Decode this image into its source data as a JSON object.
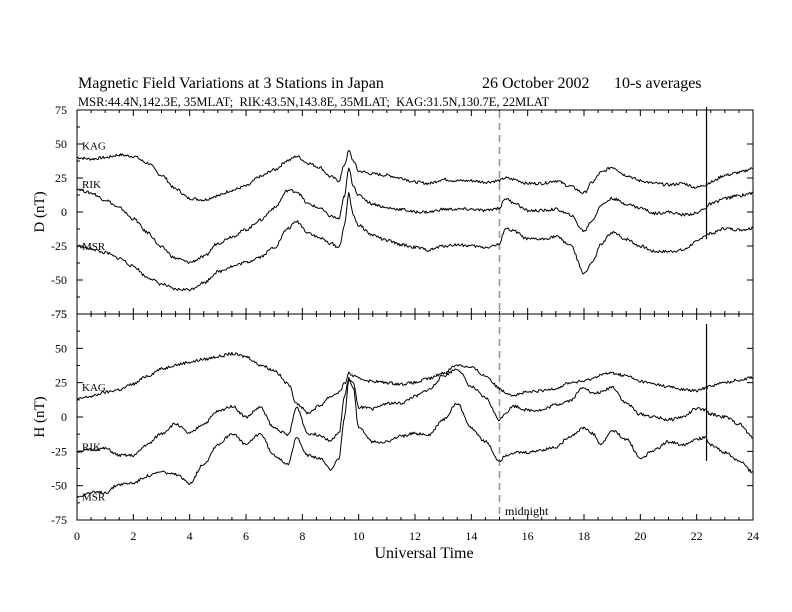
{
  "header": {
    "title": "Magnetic Field Variations at 3 Stations in Japan",
    "date": "26 October 2002",
    "averaging": "10-s averages",
    "stations_line": "MSR:44.4N,142.3E, 35MLAT;  RIK:43.5N,143.8E, 35MLAT;  KAG:31.5N,130.7E, 22MLAT"
  },
  "chart_data": [
    {
      "type": "line",
      "panel": "D",
      "ylabel": "D (nT)",
      "xlim": [
        0,
        24
      ],
      "ylim": [
        -75,
        75
      ],
      "yticks": [
        75,
        50,
        25,
        0,
        -25,
        -50,
        -75
      ],
      "series": [
        {
          "name": "KAG",
          "x": [
            0,
            0.5,
            1,
            1.5,
            2,
            2.5,
            3,
            3.5,
            4,
            4.5,
            5,
            5.5,
            6,
            6.5,
            7,
            7.5,
            7.8,
            8.2,
            8.6,
            9,
            9.3,
            9.5,
            9.65,
            9.8,
            10,
            10.5,
            11,
            11.5,
            12,
            12.5,
            13,
            13.5,
            14,
            14.5,
            15,
            15.2,
            15.5,
            16,
            16.5,
            17,
            17.5,
            18,
            18.3,
            18.6,
            19,
            19.5,
            20,
            20.5,
            21,
            21.5,
            22,
            22.3,
            22.5,
            23,
            23.5,
            24
          ],
          "y": [
            40,
            39,
            40,
            42,
            41,
            36,
            27,
            17,
            10,
            9,
            12,
            16,
            19,
            26,
            31,
            38,
            41,
            36,
            33,
            26,
            23,
            35,
            45,
            38,
            30,
            28,
            27,
            25,
            22,
            21,
            24,
            23,
            23,
            22,
            23,
            25,
            24,
            21,
            21,
            23,
            19,
            14,
            22,
            29,
            33,
            27,
            23,
            21,
            20,
            21,
            18,
            20,
            22,
            27,
            29,
            32
          ]
        },
        {
          "name": "RIK",
          "x": [
            0,
            0.5,
            1,
            1.5,
            2,
            2.5,
            3,
            3.5,
            4,
            4.5,
            5,
            5.5,
            6,
            6.5,
            7,
            7.5,
            7.8,
            8.2,
            8.6,
            9,
            9.3,
            9.5,
            9.65,
            9.8,
            10,
            10.5,
            11,
            11.5,
            12,
            12.5,
            13,
            13.5,
            14,
            14.5,
            15,
            15.2,
            15.5,
            16,
            16.5,
            17,
            17.5,
            18,
            18.3,
            18.6,
            19,
            19.5,
            20,
            20.5,
            21,
            21.5,
            22,
            22.3,
            22.5,
            23,
            23.5,
            24
          ],
          "y": [
            17,
            14,
            9,
            3,
            -5,
            -15,
            -26,
            -34,
            -37,
            -33,
            -23,
            -18,
            -13,
            -6,
            3,
            16,
            15,
            6,
            3,
            -3,
            -5,
            12,
            32,
            20,
            12,
            6,
            3,
            2,
            0,
            0,
            2,
            2,
            2,
            1,
            3,
            10,
            7,
            1,
            1,
            2,
            -2,
            -14,
            -6,
            5,
            10,
            6,
            3,
            -1,
            0,
            -2,
            -1,
            3,
            6,
            10,
            12,
            14
          ]
        },
        {
          "name": "MSR",
          "x": [
            0,
            0.5,
            1,
            1.5,
            2,
            2.5,
            3,
            3.5,
            4,
            4.5,
            5,
            5.5,
            6,
            6.5,
            7,
            7.5,
            7.8,
            8.2,
            8.6,
            9,
            9.3,
            9.5,
            9.65,
            9.8,
            10,
            10.5,
            11,
            11.5,
            12,
            12.5,
            13,
            13.5,
            14,
            14.5,
            15,
            15.2,
            15.5,
            16,
            16.5,
            17,
            17.5,
            18,
            18.3,
            18.6,
            19,
            19.5,
            20,
            20.5,
            21,
            21.5,
            22,
            22.3,
            22.5,
            23,
            23.5,
            24
          ],
          "y": [
            -25,
            -27,
            -30,
            -34,
            -40,
            -48,
            -53,
            -57,
            -57,
            -52,
            -44,
            -40,
            -37,
            -33,
            -26,
            -12,
            -7,
            -15,
            -19,
            -23,
            -26,
            -10,
            14,
            -2,
            -10,
            -17,
            -21,
            -24,
            -26,
            -28,
            -25,
            -24,
            -25,
            -26,
            -24,
            -12,
            -14,
            -20,
            -20,
            -18,
            -24,
            -45,
            -37,
            -24,
            -15,
            -20,
            -25,
            -29,
            -29,
            -28,
            -22,
            -17,
            -16,
            -12,
            -13,
            -12
          ]
        }
      ]
    },
    {
      "type": "line",
      "panel": "H",
      "ylabel": "H (nT)",
      "xlabel": "Universal Time",
      "xlim": [
        0,
        24
      ],
      "ylim": [
        -75,
        75
      ],
      "xticks": [
        0,
        2,
        4,
        6,
        8,
        10,
        12,
        14,
        16,
        18,
        20,
        22,
        24
      ],
      "yticks": [
        75,
        50,
        25,
        0,
        -25,
        -50,
        -75
      ],
      "annotation": {
        "x": 15,
        "label": "midnight"
      },
      "series": [
        {
          "name": "KAG",
          "x": [
            0,
            0.5,
            1,
            1.5,
            2,
            2.5,
            3,
            3.5,
            4,
            4.5,
            5,
            5.5,
            6,
            6.5,
            7,
            7.5,
            7.8,
            8.2,
            8.6,
            9,
            9.3,
            9.5,
            9.65,
            9.8,
            10,
            10.5,
            11,
            11.5,
            12,
            12.5,
            13,
            13.5,
            14,
            14.5,
            15,
            15.2,
            15.5,
            16,
            16.5,
            17,
            17.5,
            18,
            18.3,
            18.6,
            19,
            19.5,
            20,
            20.5,
            21,
            21.5,
            22,
            22.3,
            22.5,
            23,
            23.5,
            24
          ],
          "y": [
            13,
            15,
            18,
            20,
            24,
            30,
            35,
            38,
            40,
            42,
            44,
            46,
            44,
            38,
            34,
            24,
            10,
            3,
            8,
            15,
            18,
            24,
            32,
            30,
            28,
            26,
            25,
            24,
            25,
            28,
            32,
            38,
            36,
            30,
            21,
            18,
            16,
            18,
            19,
            21,
            25,
            26,
            28,
            31,
            32,
            30,
            26,
            24,
            22,
            20,
            19,
            21,
            23,
            25,
            27,
            29
          ]
        },
        {
          "name": "RIK",
          "x": [
            0,
            0.5,
            1,
            1.5,
            2,
            2.5,
            3,
            3.5,
            4,
            4.5,
            5,
            5.5,
            6,
            6.5,
            7,
            7.5,
            7.8,
            8.2,
            8.6,
            9,
            9.3,
            9.5,
            9.65,
            9.8,
            10,
            10.5,
            11,
            11.5,
            12,
            12.5,
            13,
            13.5,
            14,
            14.5,
            15,
            15.2,
            15.5,
            16,
            16.5,
            17,
            17.5,
            18,
            18.3,
            18.6,
            19,
            19.5,
            20,
            20.5,
            21,
            21.5,
            22,
            22.3,
            22.5,
            23,
            23.5,
            24
          ],
          "y": [
            -25,
            -24,
            -23,
            -28,
            -28,
            -20,
            -12,
            -5,
            -12,
            -5,
            4,
            8,
            0,
            7,
            -8,
            -13,
            7,
            -12,
            -13,
            -17,
            -12,
            15,
            28,
            25,
            7,
            6,
            10,
            10,
            15,
            20,
            30,
            35,
            22,
            14,
            -2,
            3,
            8,
            5,
            5,
            9,
            12,
            22,
            17,
            18,
            22,
            10,
            2,
            0,
            -2,
            0,
            6,
            5,
            2,
            0,
            -5,
            -15
          ]
        },
        {
          "name": "MSR",
          "x": [
            0,
            0.5,
            1,
            1.5,
            2,
            2.5,
            3,
            3.5,
            4,
            4.5,
            5,
            5.5,
            6,
            6.5,
            7,
            7.5,
            7.8,
            8.2,
            8.6,
            9,
            9.3,
            9.5,
            9.65,
            9.8,
            10,
            10.5,
            11,
            11.5,
            12,
            12.5,
            13,
            13.5,
            14,
            14.5,
            15,
            15.2,
            15.5,
            16,
            16.5,
            17,
            17.5,
            18,
            18.3,
            18.6,
            19,
            19.5,
            20,
            20.5,
            21,
            21.5,
            22,
            22.3,
            22.5,
            23,
            23.5,
            24
          ],
          "y": [
            -58,
            -55,
            -55,
            -49,
            -48,
            -43,
            -40,
            -42,
            -48,
            -34,
            -20,
            -12,
            -20,
            -12,
            -28,
            -34,
            -15,
            -28,
            -30,
            -38,
            -30,
            0,
            26,
            22,
            -8,
            -18,
            -18,
            -14,
            -12,
            -13,
            -2,
            10,
            -8,
            -18,
            -32,
            -28,
            -26,
            -26,
            -24,
            -22,
            -14,
            -8,
            -12,
            -20,
            -10,
            -16,
            -30,
            -24,
            -18,
            -20,
            -16,
            -15,
            -20,
            -26,
            -32,
            -40
          ]
        }
      ]
    }
  ]
}
